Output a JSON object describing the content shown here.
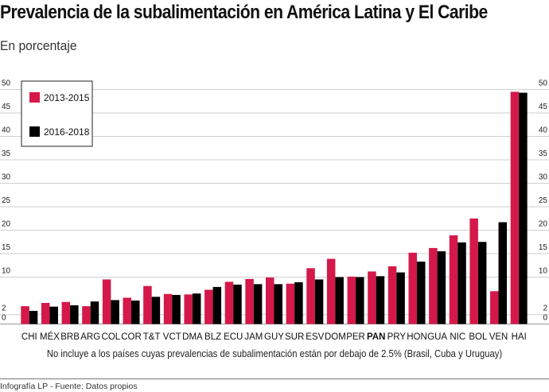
{
  "header": {
    "title": "Prevalencia de la subalimentación en América Latina y El Caribe",
    "subtitle": "En porcentaje"
  },
  "note": "No incluye a los países cuyas prevalencias de subalimentación están por debajo de 2.5% (Brasil, Cuba y Uruguay)",
  "footer": "Infografía LP - Fuente: Datos propios",
  "colors": {
    "series_1": "#d4184a",
    "series_2": "#000000",
    "grid": "#cfcfcf"
  },
  "chart_data": {
    "type": "bar",
    "categories": [
      "CHI",
      "MÉX",
      "BRB",
      "ARG",
      "COL",
      "COR",
      "T&T",
      "VCT",
      "DMA",
      "BLZ",
      "ECU",
      "JAM",
      "GUY",
      "SUR",
      "ESV",
      "DOM",
      "PER",
      "PAN",
      "PRY",
      "HON",
      "GUA",
      "NIC",
      "BOL",
      "VEN",
      "HAI"
    ],
    "highlight_category": "PAN",
    "series": [
      {
        "name": "2013-2015",
        "values": [
          3.8,
          4.5,
          4.7,
          3.8,
          9.5,
          5.6,
          8.1,
          6.4,
          6.3,
          7.3,
          9.0,
          9.6,
          9.9,
          8.6,
          11.9,
          13.9,
          10.1,
          11.2,
          12.3,
          15.2,
          16.2,
          18.9,
          22.5,
          7.0,
          49.5
        ]
      },
      {
        "name": "2016-2018",
        "values": [
          2.8,
          3.7,
          4.0,
          4.8,
          5.1,
          5.0,
          5.8,
          6.2,
          6.5,
          7.9,
          8.4,
          8.5,
          8.5,
          8.9,
          9.5,
          10.0,
          10.0,
          10.2,
          11.0,
          13.3,
          15.5,
          17.4,
          17.5,
          21.7,
          49.3
        ]
      }
    ],
    "yaxis": {
      "min": 0,
      "max": 50,
      "ticks": [
        0,
        2,
        10,
        15,
        20,
        25,
        30,
        35,
        40,
        45,
        50
      ],
      "grid": true,
      "sides": "both"
    },
    "legend": {
      "placement": "top-left",
      "framed": true
    }
  }
}
